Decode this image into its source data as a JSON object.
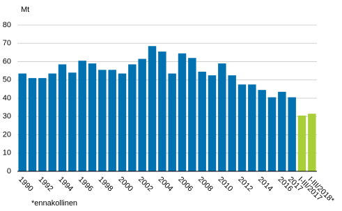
{
  "chart_data": {
    "type": "bar",
    "unit": "Mt",
    "note": "*ennakollinen",
    "categories": [
      "1990",
      null,
      "1992",
      null,
      "1994",
      null,
      "1996",
      null,
      "1998",
      null,
      "2000",
      null,
      "2002",
      null,
      "2004",
      null,
      "2006",
      null,
      "2008",
      null,
      "2010",
      null,
      "2012",
      null,
      "2014",
      null,
      "2016",
      "2017",
      "I-III/2017",
      "I-III/2018*"
    ],
    "values": [
      53.5,
      51,
      51,
      53.5,
      58.5,
      54,
      60.5,
      59,
      55.5,
      55.5,
      53.5,
      58.5,
      61.5,
      68.5,
      65.5,
      53.5,
      64.5,
      62,
      54.5,
      52.5,
      59,
      52.5,
      47.5,
      47.5,
      44.5,
      40.5,
      43.5,
      40.5,
      30.5,
      31.5
    ],
    "colors": [
      "#0072b2",
      "#0072b2",
      "#0072b2",
      "#0072b2",
      "#0072b2",
      "#0072b2",
      "#0072b2",
      "#0072b2",
      "#0072b2",
      "#0072b2",
      "#0072b2",
      "#0072b2",
      "#0072b2",
      "#0072b2",
      "#0072b2",
      "#0072b2",
      "#0072b2",
      "#0072b2",
      "#0072b2",
      "#0072b2",
      "#0072b2",
      "#0072b2",
      "#0072b2",
      "#0072b2",
      "#0072b2",
      "#0072b2",
      "#0072b2",
      "#0072b2",
      "#a8cf38",
      "#a8cf38"
    ],
    "ylim": [
      0,
      80
    ],
    "yticks": [
      0,
      10,
      20,
      30,
      40,
      50,
      60,
      70,
      80
    ],
    "grid": true
  }
}
